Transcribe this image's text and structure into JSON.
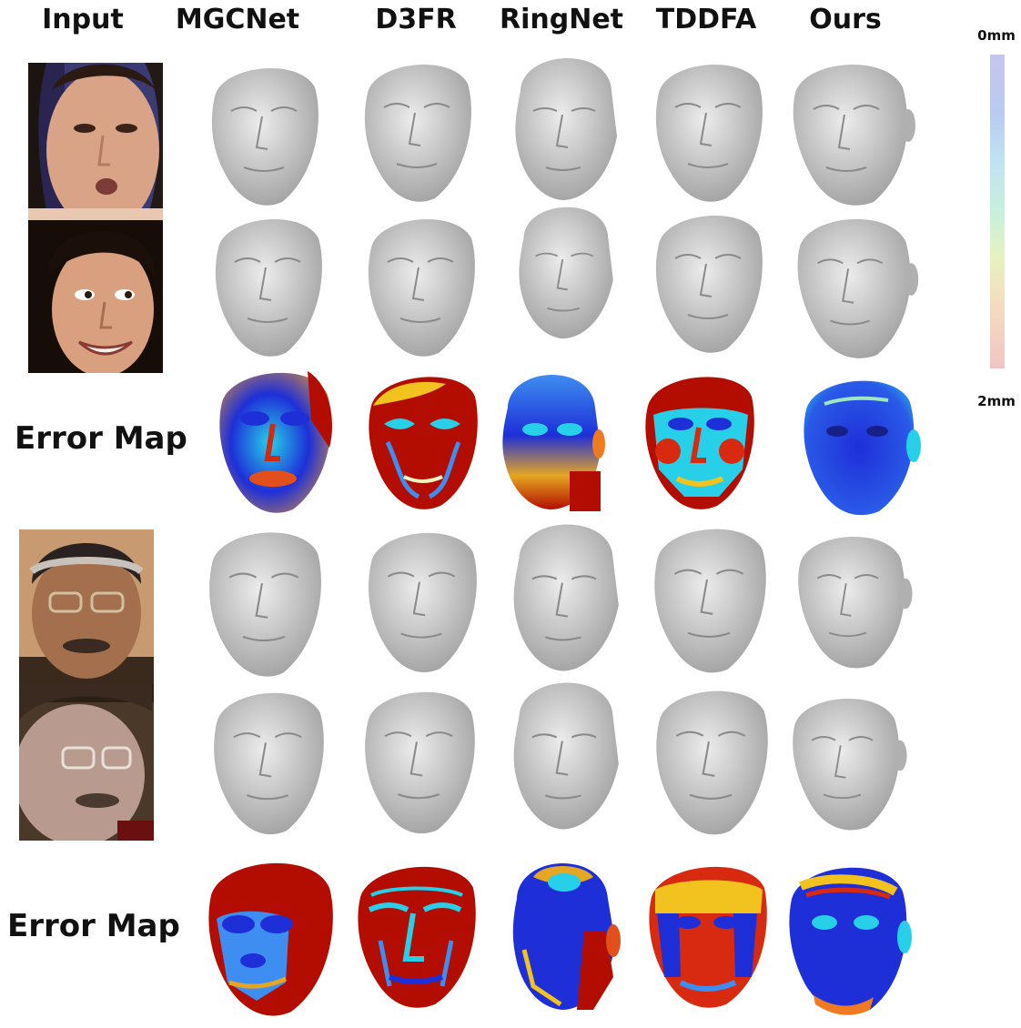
{
  "columns": {
    "input": "Input",
    "mgcnet": "MGCNet",
    "d3fr": "D3FR",
    "ringnet": "RingNet",
    "tddfa": "TDDFA",
    "ours": "Ours"
  },
  "rows": {
    "error_map_label_1": "Error Map",
    "error_map_label_2": "Error Map"
  },
  "colorbar": {
    "min_label": "0mm",
    "max_label": "2mm",
    "colors": [
      "#c6c6ee",
      "#b9caf2",
      "#bfe4f1",
      "#c6f0dd",
      "#e7f1bf",
      "#f5dcbf",
      "#f1c4c4"
    ]
  },
  "error_map_colors": {
    "low": "#1e2fd8",
    "mid": "#27d0e8",
    "high": "#b20d00"
  }
}
